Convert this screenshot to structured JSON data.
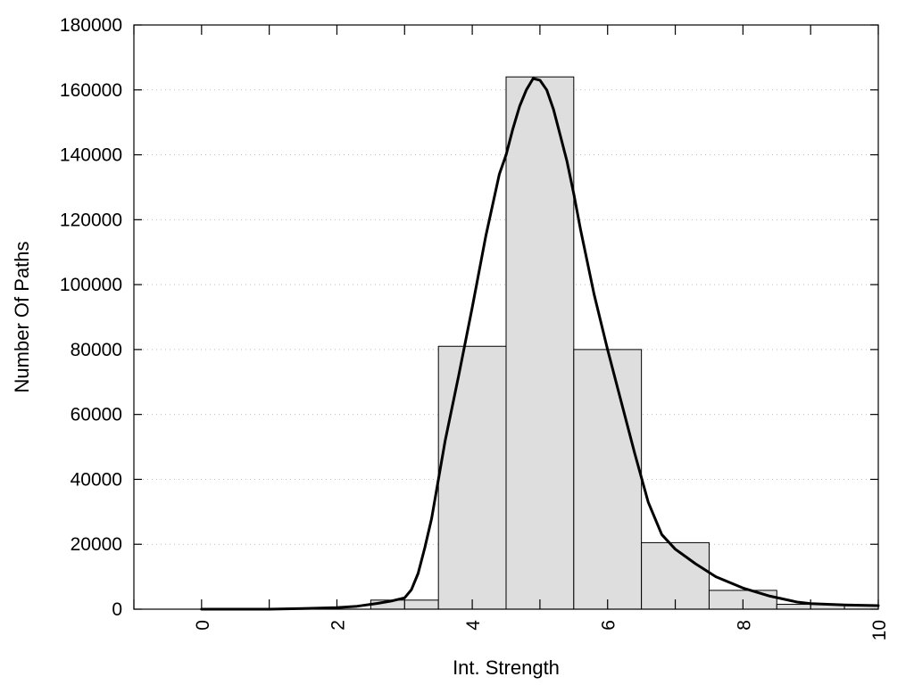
{
  "chart_data": {
    "type": "bar",
    "title": "",
    "xlabel": "Int. Strength",
    "ylabel": "Number Of Paths",
    "xlim": [
      -1,
      10
    ],
    "ylim": [
      0,
      180000
    ],
    "x_ticks": [
      0,
      2,
      4,
      6,
      8,
      10
    ],
    "y_ticks": [
      0,
      20000,
      40000,
      60000,
      80000,
      100000,
      120000,
      140000,
      160000,
      180000
    ],
    "grid": "y-dotted",
    "bars": {
      "bin_width": 1,
      "x": [
        0,
        1,
        2,
        3,
        4,
        5,
        6,
        7,
        8,
        9,
        10
      ],
      "values": [
        0,
        0,
        0,
        2800,
        81000,
        164000,
        80000,
        20500,
        5800,
        1500,
        1300
      ]
    },
    "curve": {
      "x": [
        0,
        0.5,
        1,
        1.5,
        2,
        2.3,
        2.6,
        2.8,
        3,
        3.1,
        3.2,
        3.3,
        3.4,
        3.5,
        3.6,
        3.8,
        4,
        4.2,
        4.4,
        4.5,
        4.6,
        4.7,
        4.8,
        4.9,
        5,
        5.1,
        5.2,
        5.3,
        5.4,
        5.5,
        5.6,
        5.8,
        6,
        6.2,
        6.4,
        6.6,
        6.8,
        7,
        7.3,
        7.6,
        8,
        8.4,
        8.8,
        9,
        9.5,
        10
      ],
      "y": [
        0,
        0,
        0,
        200,
        500,
        900,
        1800,
        2500,
        3500,
        6000,
        11000,
        19000,
        28000,
        40000,
        52000,
        72000,
        93000,
        115000,
        134000,
        140000,
        148000,
        155000,
        160000,
        163500,
        163000,
        160000,
        154000,
        146000,
        138000,
        128000,
        117000,
        97000,
        80000,
        64000,
        48000,
        33000,
        23000,
        18500,
        14000,
        10000,
        6500,
        4000,
        2200,
        1700,
        1300,
        1100
      ]
    }
  }
}
